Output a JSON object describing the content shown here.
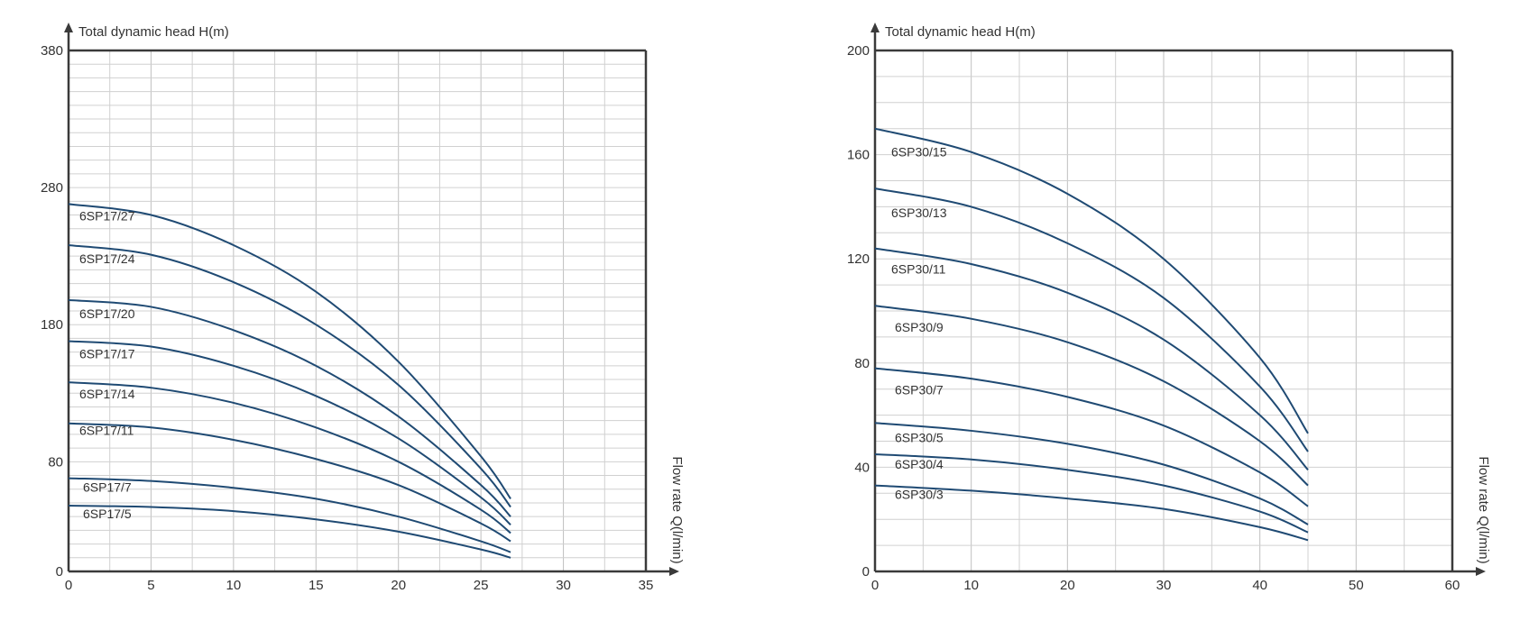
{
  "colors": {
    "curve": "#1f4a73",
    "axis": "#3a3a3a",
    "grid_major": "#bfbfbf",
    "grid_minor": "#d0d0d0",
    "text": "#333333"
  },
  "chart_data": [
    {
      "type": "line",
      "title": "",
      "xlabel": "Flow rate Q(l/min)",
      "ylabel": "Total dynamic head H(m)",
      "xlim": [
        0,
        35
      ],
      "ylim": [
        0,
        380
      ],
      "x_ticks": [
        0,
        5,
        10,
        15,
        20,
        25,
        30,
        35
      ],
      "y_ticks": [
        0,
        80,
        180,
        280,
        380
      ],
      "grid": true,
      "series": [
        {
          "name": "6SP17/27",
          "x": [
            0,
            5,
            10,
            15,
            20,
            25,
            26.8
          ],
          "y": [
            268,
            260,
            238,
            204,
            153,
            84,
            53
          ]
        },
        {
          "name": "6SP17/24",
          "x": [
            0,
            5,
            10,
            15,
            20,
            25,
            26.8
          ],
          "y": [
            238,
            231,
            211,
            180,
            136,
            75,
            47
          ]
        },
        {
          "name": "6SP17/20",
          "x": [
            0,
            5,
            10,
            15,
            20,
            25,
            26.8
          ],
          "y": [
            198,
            193,
            176,
            150,
            113,
            63,
            40
          ]
        },
        {
          "name": "6SP17/17",
          "x": [
            0,
            5,
            10,
            15,
            20,
            25,
            26.8
          ],
          "y": [
            168,
            164,
            150,
            128,
            97,
            54,
            34
          ]
        },
        {
          "name": "6SP17/14",
          "x": [
            0,
            5,
            10,
            15,
            20,
            25,
            26.8
          ],
          "y": [
            138,
            134,
            123,
            105,
            80,
            45,
            28
          ]
        },
        {
          "name": "6SP17/11",
          "x": [
            0,
            5,
            10,
            15,
            20,
            25,
            26.8
          ],
          "y": [
            108,
            105,
            96,
            82,
            63,
            35,
            22
          ]
        },
        {
          "name": "6SP17/7",
          "x": [
            0,
            5,
            10,
            15,
            20,
            25,
            26.8
          ],
          "y": [
            68,
            66,
            61,
            53,
            40,
            22,
            14
          ]
        },
        {
          "name": "6SP17/5",
          "x": [
            0,
            5,
            10,
            15,
            20,
            25,
            26.8
          ],
          "y": [
            48,
            47,
            44,
            38,
            29,
            16,
            10
          ]
        }
      ]
    },
    {
      "type": "line",
      "title": "",
      "xlabel": "Flow rate Q(l/min)",
      "ylabel": "Total dynamic head H(m)",
      "xlim": [
        0,
        60
      ],
      "ylim": [
        0,
        200
      ],
      "x_ticks": [
        0,
        10,
        20,
        30,
        40,
        50,
        60
      ],
      "y_ticks": [
        0,
        40,
        80,
        120,
        160,
        200
      ],
      "grid": true,
      "series": [
        {
          "name": "6SP30/15",
          "x": [
            0,
            10,
            20,
            30,
            40,
            45
          ],
          "y": [
            170,
            161,
            145,
            120,
            82,
            53
          ]
        },
        {
          "name": "6SP30/13",
          "x": [
            0,
            10,
            20,
            30,
            40,
            45
          ],
          "y": [
            147,
            140,
            126,
            105,
            71,
            46
          ]
        },
        {
          "name": "6SP30/11",
          "x": [
            0,
            10,
            20,
            30,
            40,
            45
          ],
          "y": [
            124,
            118,
            107,
            89,
            60,
            39
          ]
        },
        {
          "name": "6SP30/9",
          "x": [
            0,
            10,
            20,
            30,
            40,
            45
          ],
          "y": [
            102,
            97,
            88,
            73,
            50,
            33
          ]
        },
        {
          "name": "6SP30/7",
          "x": [
            0,
            10,
            20,
            30,
            40,
            45
          ],
          "y": [
            78,
            74,
            67,
            56,
            38,
            25
          ]
        },
        {
          "name": "6SP30/5",
          "x": [
            0,
            10,
            20,
            30,
            40,
            45
          ],
          "y": [
            57,
            54,
            49,
            41,
            28,
            18
          ]
        },
        {
          "name": "6SP30/4",
          "x": [
            0,
            10,
            20,
            30,
            40,
            45
          ],
          "y": [
            45,
            43,
            39,
            33,
            23,
            15
          ]
        },
        {
          "name": "6SP30/3",
          "x": [
            0,
            10,
            20,
            30,
            40,
            45
          ],
          "y": [
            33,
            31,
            28,
            24,
            17,
            12
          ]
        }
      ]
    }
  ]
}
